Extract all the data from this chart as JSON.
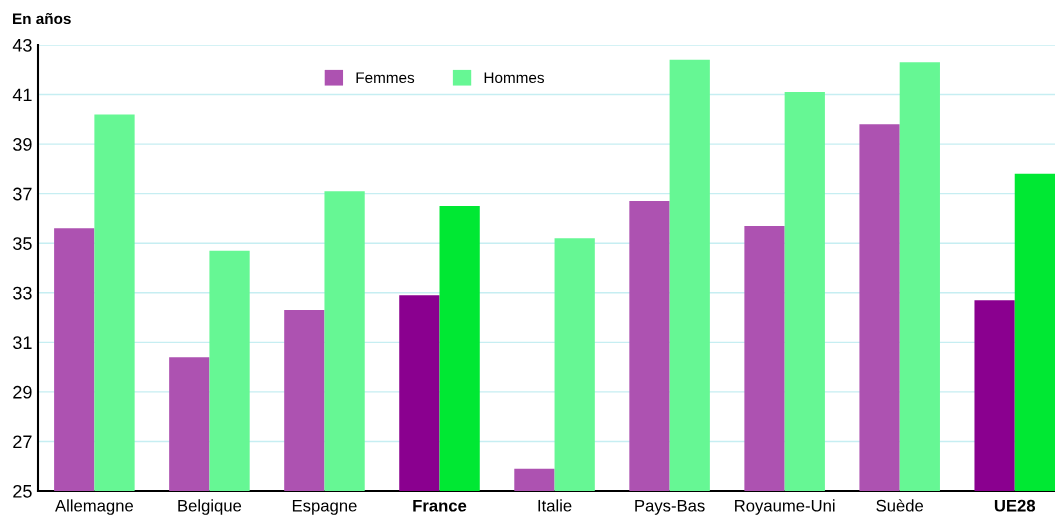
{
  "chart_data": {
    "type": "bar",
    "title": "En años",
    "categories": [
      "Allemagne",
      "Belgique",
      "Espagne",
      "France",
      "Italie",
      "Pays-Bas",
      "Royaume-Uni",
      "Suède",
      "UE28"
    ],
    "series": [
      {
        "name": "Femmes",
        "color": "#ad52b1",
        "values": [
          35.6,
          30.4,
          32.3,
          32.9,
          25.9,
          36.7,
          35.7,
          39.8,
          32.7
        ],
        "colors": [
          "#ad52b1",
          "#ad52b1",
          "#ad52b1",
          "#8a008f",
          "#ad52b1",
          "#ad52b1",
          "#ad52b1",
          "#ad52b1",
          "#8a008f"
        ]
      },
      {
        "name": "Hommes",
        "color": "#66f794",
        "values": [
          40.2,
          34.7,
          37.1,
          36.5,
          35.2,
          42.4,
          41.1,
          42.3,
          37.8
        ],
        "colors": [
          "#66f794",
          "#66f794",
          "#66f794",
          "#00e833",
          "#66f794",
          "#66f794",
          "#66f794",
          "#66f794",
          "#00e833"
        ]
      }
    ],
    "ylim": [
      25,
      43
    ],
    "yticks": [
      25,
      27,
      29,
      31,
      33,
      35,
      37,
      39,
      41,
      43
    ],
    "grid": "y",
    "legend": "top"
  }
}
